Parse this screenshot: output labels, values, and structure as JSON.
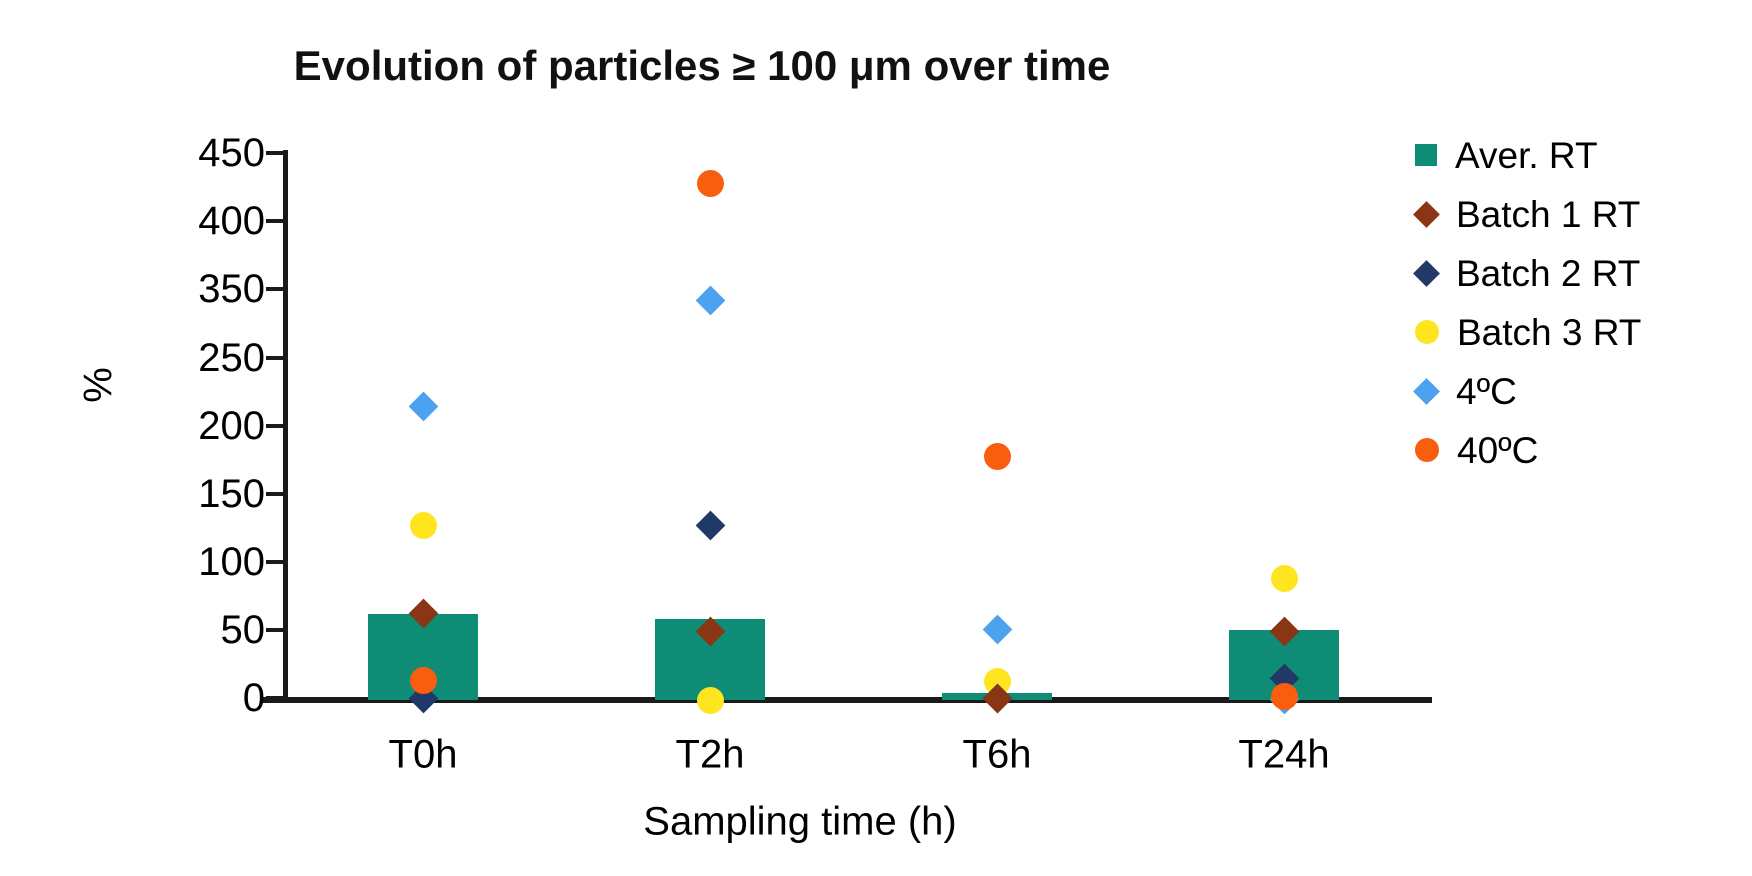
{
  "title": "Evolution of particles ≥ 100 μm over time",
  "chart_data": {
    "type": "bar",
    "subtype": "bar-with-scatter-overlay",
    "title": "Evolution of particles ≥ 100 μm over time",
    "xlabel": "Sampling time (h)",
    "ylabel": "%",
    "categories": [
      "T0h",
      "T2h",
      "T6h",
      "T24h"
    ],
    "y_axis_tick_labels": [
      0,
      50,
      100,
      150,
      200,
      250,
      350,
      400,
      450
    ],
    "axis_note": "9 evenly spaced ticks; label 300 is skipped on the source axis",
    "grid": "off",
    "legend_position": "right",
    "bar_series": {
      "name": "Aver. RT",
      "marker": "square",
      "color": "#0e8c75",
      "values": [
        62,
        58,
        4,
        50
      ]
    },
    "scatter_series": [
      {
        "name": "Batch 1 RT",
        "marker": "diamond",
        "color": "#8a3513",
        "values": [
          62,
          49,
          0,
          49
        ]
      },
      {
        "name": "Batch 2 RT",
        "marker": "diamond",
        "color": "#213968",
        "values": [
          0,
          127,
          0,
          14
        ]
      },
      {
        "name": "Batch 3 RT",
        "marker": "circle",
        "color": "#ffe51f",
        "values": [
          127,
          -2,
          12,
          88
        ]
      },
      {
        "name": "4ºC",
        "marker": "diamond",
        "color": "#4da2f0",
        "values": [
          214,
          333,
          50,
          -1
        ]
      },
      {
        "name": "40ºC",
        "marker": "circle",
        "color": "#f95d0e",
        "values": [
          13,
          428,
          177,
          1
        ]
      }
    ],
    "draw_order_of_scatter": [
      "Batch 3 RT",
      "Batch 2 RT",
      "Batch 1 RT",
      "4ºC",
      "40ºC"
    ]
  },
  "colors": {
    "background": "#ffffff",
    "axis": "#1a1a1a",
    "text": "#000000",
    "title_text": "#111111",
    "aver_rt": "#0e8c75",
    "batch1_rt": "#8a3513",
    "batch2_rt": "#213968",
    "batch3_rt": "#ffe51f",
    "cold_4c": "#4da2f0",
    "hot_40c": "#f95d0e"
  }
}
